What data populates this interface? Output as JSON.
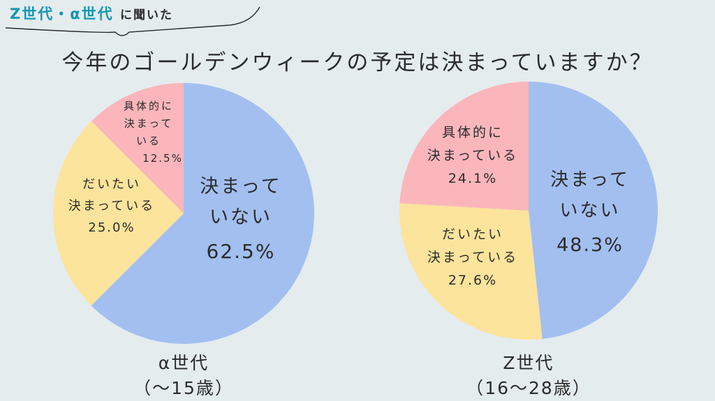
{
  "header": {
    "tag_accent": "Z世代・α世代",
    "tag_plain": "に聞いた"
  },
  "title": "今年のゴールデンウィークの予定は決まっていますか？",
  "colors": {
    "blue": "#a3bff0",
    "yellow": "#fde49c",
    "pink": "#fbb6bb",
    "accent": "#1497b3",
    "text": "#2b2b2b"
  },
  "chart_data": [
    {
      "type": "pie",
      "caption_line1": "α世代",
      "caption_line2": "（〜15歳）",
      "slices": [
        {
          "label_lines": [
            "決まって",
            "いない"
          ],
          "value": 62.5,
          "value_text": "62.5%",
          "color": "blue"
        },
        {
          "label_lines": [
            "だいたい",
            "決まっている"
          ],
          "value": 25.0,
          "value_text": "25.0%",
          "color": "yellow"
        },
        {
          "label_lines": [
            "具体的に",
            "決まって",
            "いる"
          ],
          "value": 12.5,
          "value_text": "12.5%",
          "color": "pink"
        }
      ]
    },
    {
      "type": "pie",
      "caption_line1": "Z世代",
      "caption_line2": "（16〜28歳）",
      "slices": [
        {
          "label_lines": [
            "決まって",
            "いない"
          ],
          "value": 48.3,
          "value_text": "48.3%",
          "color": "blue"
        },
        {
          "label_lines": [
            "だいたい",
            "決まっている"
          ],
          "value": 27.6,
          "value_text": "27.6%",
          "color": "yellow"
        },
        {
          "label_lines": [
            "具体的に",
            "決まっている"
          ],
          "value": 24.1,
          "value_text": "24.1%",
          "color": "pink"
        }
      ]
    }
  ]
}
